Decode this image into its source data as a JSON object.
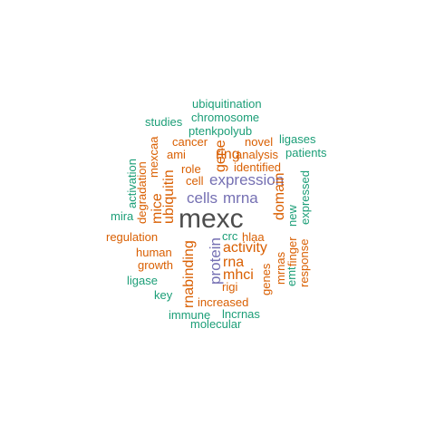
{
  "colors": {
    "green": "#1b9e77",
    "orange": "#d95f02",
    "purple": "#7570b3",
    "gray": "#4d4d4d"
  },
  "words": [
    {
      "text": "mexc",
      "color": "gray",
      "weight": 5
    },
    {
      "text": "expression",
      "color": "purple",
      "weight": 3
    },
    {
      "text": "mrna",
      "color": "purple",
      "weight": 3
    },
    {
      "text": "cells",
      "color": "purple",
      "weight": 3
    },
    {
      "text": "protein",
      "color": "purple",
      "weight": 3
    },
    {
      "text": "ubiquitination",
      "color": "green",
      "weight": 1
    },
    {
      "text": "chromosome",
      "color": "green",
      "weight": 1
    },
    {
      "text": "studies",
      "color": "green",
      "weight": 1
    },
    {
      "text": "ptenkpolyub",
      "color": "green",
      "weight": 1
    },
    {
      "text": "ligases",
      "color": "green",
      "weight": 1
    },
    {
      "text": "cancer",
      "color": "orange",
      "weight": 1
    },
    {
      "text": "ring",
      "color": "orange",
      "weight": 2
    },
    {
      "text": "novel",
      "color": "orange",
      "weight": 1
    },
    {
      "text": "patients",
      "color": "green",
      "weight": 1
    },
    {
      "text": "ami",
      "color": "orange",
      "weight": 1
    },
    {
      "text": "gene",
      "color": "orange",
      "weight": 2
    },
    {
      "text": "analysis",
      "color": "orange",
      "weight": 1
    },
    {
      "text": "mexcaa",
      "color": "orange",
      "weight": 1
    },
    {
      "text": "role",
      "color": "orange",
      "weight": 1
    },
    {
      "text": "identified",
      "color": "orange",
      "weight": 1
    },
    {
      "text": "activation",
      "color": "green",
      "weight": 1
    },
    {
      "text": "cell",
      "color": "orange",
      "weight": 1
    },
    {
      "text": "degradation",
      "color": "orange",
      "weight": 1
    },
    {
      "text": "ubiquitin",
      "color": "orange",
      "weight": 2
    },
    {
      "text": "domain",
      "color": "orange",
      "weight": 2
    },
    {
      "text": "new",
      "color": "green",
      "weight": 1
    },
    {
      "text": "expressed",
      "color": "green",
      "weight": 1
    },
    {
      "text": "mice",
      "color": "orange",
      "weight": 2
    },
    {
      "text": "mira",
      "color": "green",
      "weight": 1
    },
    {
      "text": "regulation",
      "color": "orange",
      "weight": 1
    },
    {
      "text": "crc",
      "color": "green",
      "weight": 1
    },
    {
      "text": "hlaa",
      "color": "orange",
      "weight": 1
    },
    {
      "text": "finger",
      "color": "orange",
      "weight": 1
    },
    {
      "text": "activity",
      "color": "orange",
      "weight": 2
    },
    {
      "text": "human",
      "color": "orange",
      "weight": 1
    },
    {
      "text": "rnabinding",
      "color": "orange",
      "weight": 2
    },
    {
      "text": "rna",
      "color": "orange",
      "weight": 2
    },
    {
      "text": "response",
      "color": "orange",
      "weight": 1
    },
    {
      "text": "growth",
      "color": "orange",
      "weight": 1
    },
    {
      "text": "mrnas",
      "color": "orange",
      "weight": 1
    },
    {
      "text": "emt",
      "color": "green",
      "weight": 1
    },
    {
      "text": "mhci",
      "color": "orange",
      "weight": 2
    },
    {
      "text": "genes",
      "color": "orange",
      "weight": 1
    },
    {
      "text": "ligase",
      "color": "green",
      "weight": 1
    },
    {
      "text": "rigi",
      "color": "orange",
      "weight": 1
    },
    {
      "text": "key",
      "color": "green",
      "weight": 1
    },
    {
      "text": "increased",
      "color": "orange",
      "weight": 1
    },
    {
      "text": "immune",
      "color": "green",
      "weight": 1
    },
    {
      "text": "lncrnas",
      "color": "green",
      "weight": 1
    },
    {
      "text": "molecular",
      "color": "green",
      "weight": 1
    }
  ]
}
